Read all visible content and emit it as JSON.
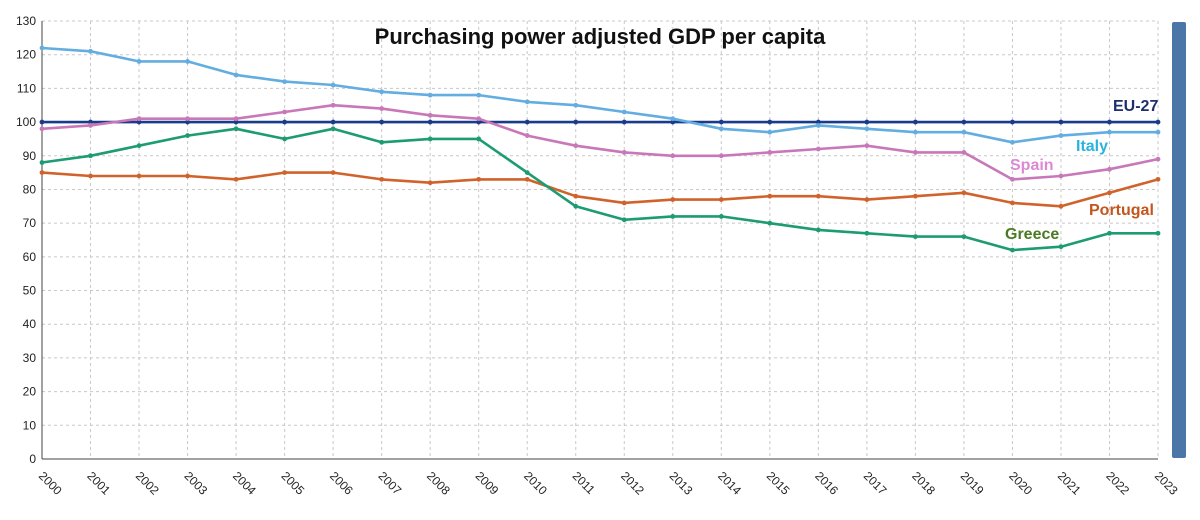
{
  "chart_data": {
    "type": "line",
    "title": "Purchasing power adjusted GDP per capita",
    "x": [
      "2000",
      "2001",
      "2002",
      "2003",
      "2004",
      "2005",
      "2006",
      "2007",
      "2008",
      "2009",
      "2010",
      "2011",
      "2012",
      "2013",
      "2014",
      "2015",
      "2016",
      "2017",
      "2018",
      "2019",
      "2020",
      "2021",
      "2022",
      "2023"
    ],
    "ylim": [
      0,
      130
    ],
    "yticks": [
      0,
      10,
      20,
      30,
      40,
      50,
      60,
      70,
      80,
      90,
      100,
      110,
      120,
      130
    ],
    "grid": true,
    "series": [
      {
        "name": "EU-27",
        "color": "#1a3a8a",
        "label_color": "#1f2f6e",
        "values": [
          100,
          100,
          100,
          100,
          100,
          100,
          100,
          100,
          100,
          100,
          100,
          100,
          100,
          100,
          100,
          100,
          100,
          100,
          100,
          100,
          100,
          100,
          100,
          100
        ]
      },
      {
        "name": "Italy",
        "color": "#63ade0",
        "label_color": "#2bb3e0",
        "values": [
          122,
          121,
          118,
          118,
          114,
          112,
          111,
          109,
          108,
          108,
          106,
          105,
          103,
          101,
          98,
          97,
          99,
          98,
          97,
          97,
          94,
          96,
          97,
          97
        ]
      },
      {
        "name": "Spain",
        "color": "#c878b8",
        "label_color": "#dd88d4",
        "values": [
          98,
          99,
          101,
          101,
          101,
          103,
          105,
          104,
          102,
          101,
          96,
          93,
          91,
          90,
          90,
          91,
          92,
          93,
          91,
          91,
          83,
          84,
          86,
          89
        ]
      },
      {
        "name": "Portugal",
        "color": "#d0632b",
        "label_color": "#c4561d",
        "values": [
          85,
          84,
          84,
          84,
          83,
          85,
          85,
          83,
          82,
          83,
          83,
          78,
          76,
          77,
          77,
          78,
          78,
          77,
          78,
          79,
          76,
          75,
          79,
          83
        ]
      },
      {
        "name": "Greece",
        "color": "#1d9b73",
        "label_color": "#4a7a22",
        "values": [
          88,
          90,
          93,
          96,
          98,
          95,
          98,
          94,
          95,
          95,
          85,
          75,
          71,
          72,
          72,
          70,
          68,
          67,
          66,
          66,
          62,
          63,
          67,
          67
        ]
      }
    ]
  },
  "ui": {
    "scrollbar_color": "#4a77a8"
  }
}
